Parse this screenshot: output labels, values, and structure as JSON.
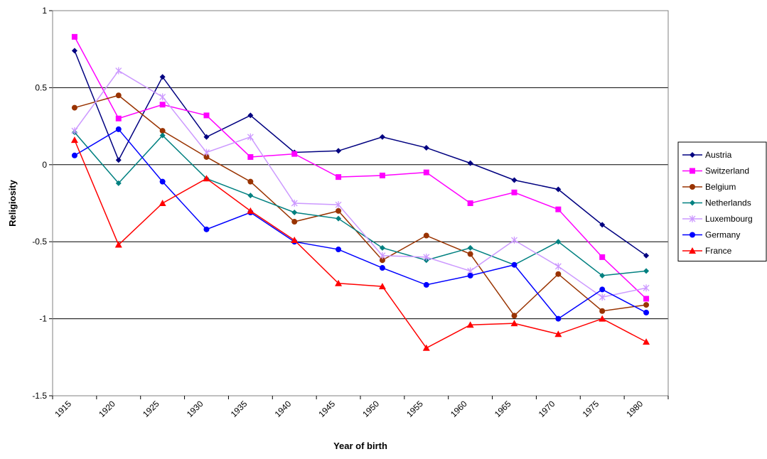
{
  "chart_data": {
    "type": "line",
    "x_label": "Year of birth",
    "y_label": "Religiosity",
    "categories": [
      "1915",
      "1920",
      "1925",
      "1930",
      "1935",
      "1940",
      "1945",
      "1950",
      "1955",
      "1960",
      "1965",
      "1970",
      "1975",
      "1980"
    ],
    "ylim": [
      -1.5,
      1
    ],
    "yticks": [
      -1.5,
      -1,
      -0.5,
      0,
      0.5,
      1
    ],
    "grid": true,
    "legend": "right",
    "series": [
      {
        "name": "Austria",
        "color": "#000080",
        "marker": "diamond",
        "values": [
          0.74,
          0.03,
          0.57,
          0.18,
          0.32,
          0.08,
          0.09,
          0.18,
          0.11,
          0.01,
          -0.1,
          -0.16,
          -0.39,
          -0.59
        ]
      },
      {
        "name": "Switzerland",
        "color": "#ff00ff",
        "marker": "square",
        "values": [
          0.83,
          0.3,
          0.39,
          0.32,
          0.05,
          0.07,
          -0.08,
          -0.07,
          -0.05,
          -0.25,
          -0.18,
          -0.29,
          -0.6,
          -0.87
        ]
      },
      {
        "name": "Belgium",
        "color": "#993300",
        "marker": "circle",
        "values": [
          0.37,
          0.45,
          0.22,
          0.05,
          -0.11,
          -0.37,
          -0.3,
          -0.62,
          -0.46,
          -0.58,
          -0.98,
          -0.71,
          -0.95,
          -0.91
        ]
      },
      {
        "name": "Netherlands",
        "color": "#008080",
        "marker": "diamond",
        "values": [
          0.21,
          -0.12,
          0.19,
          -0.09,
          -0.2,
          -0.31,
          -0.35,
          -0.54,
          -0.62,
          -0.54,
          -0.65,
          -0.5,
          -0.72,
          -0.69
        ]
      },
      {
        "name": "Luxembourg",
        "color": "#cc99ff",
        "marker": "star",
        "values": [
          0.22,
          0.61,
          0.44,
          0.08,
          0.18,
          -0.25,
          -0.26,
          -0.59,
          -0.6,
          -0.69,
          -0.49,
          -0.66,
          -0.86,
          -0.8
        ]
      },
      {
        "name": "Germany",
        "color": "#0000ff",
        "marker": "circle",
        "values": [
          0.06,
          0.23,
          -0.11,
          -0.42,
          -0.31,
          -0.5,
          -0.55,
          -0.67,
          -0.78,
          -0.72,
          -0.65,
          -1.0,
          -0.81,
          -0.96
        ]
      },
      {
        "name": "France",
        "color": "#ff0000",
        "marker": "triangle",
        "values": [
          0.16,
          -0.52,
          -0.25,
          -0.09,
          -0.3,
          -0.49,
          -0.77,
          -0.79,
          -1.19,
          -1.04,
          -1.03,
          -1.1,
          -1.0,
          -1.15
        ]
      }
    ]
  }
}
